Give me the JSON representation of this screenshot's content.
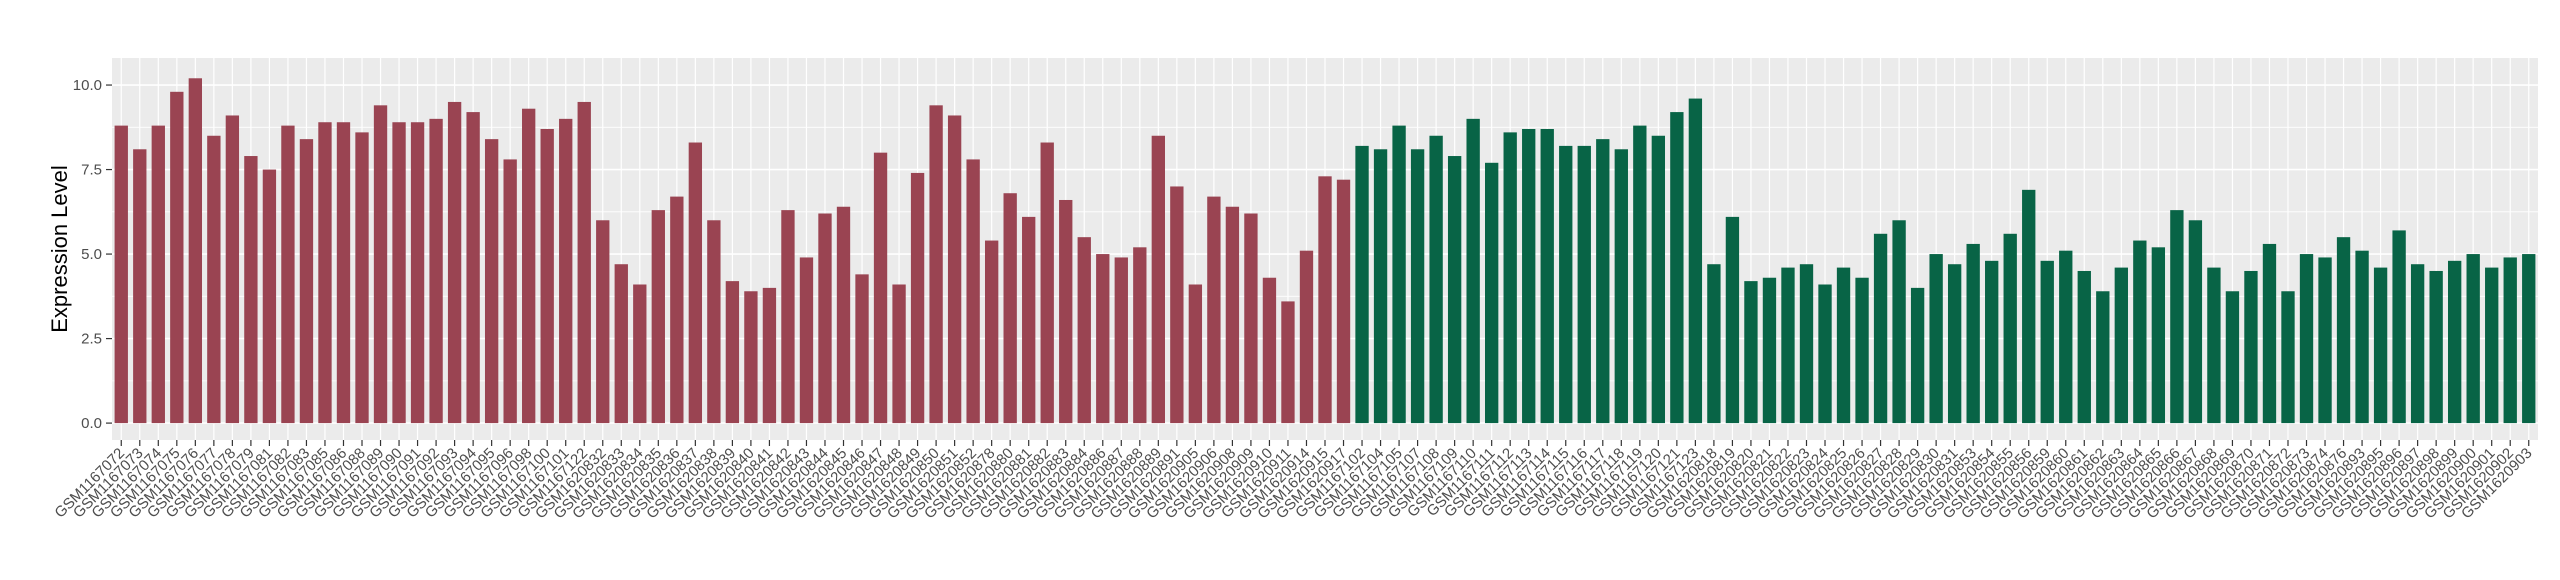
{
  "chart_data": {
    "type": "bar",
    "ylabel": "Expression Level",
    "xlabel": "",
    "ylim": [
      -0.5,
      10.8
    ],
    "yticks": [
      0.0,
      2.5,
      5.0,
      7.5,
      10.0
    ],
    "ytick_labels": [
      "0.0",
      "2.5",
      "5.0",
      "7.5",
      "10.0"
    ],
    "grid": true,
    "legend": "none",
    "colors": {
      "group_a": "#9a4452",
      "group_b": "#086446",
      "panel": "#ebebeb",
      "grid": "#ffffff"
    },
    "categories": [
      "GSM1167072",
      "GSM1167073",
      "GSM1167074",
      "GSM1167075",
      "GSM1167076",
      "GSM1167077",
      "GSM1167078",
      "GSM1167079",
      "GSM1167081",
      "GSM1167082",
      "GSM1167083",
      "GSM1167085",
      "GSM1167086",
      "GSM1167088",
      "GSM1167089",
      "GSM1167090",
      "GSM1167091",
      "GSM1167092",
      "GSM1167093",
      "GSM1167094",
      "GSM1167095",
      "GSM1167096",
      "GSM1167098",
      "GSM1167100",
      "GSM1167101",
      "GSM1167122",
      "GSM1620832",
      "GSM1620833",
      "GSM1620834",
      "GSM1620835",
      "GSM1620836",
      "GSM1620837",
      "GSM1620838",
      "GSM1620839",
      "GSM1620840",
      "GSM1620841",
      "GSM1620842",
      "GSM1620843",
      "GSM1620844",
      "GSM1620845",
      "GSM1620846",
      "GSM1620847",
      "GSM1620848",
      "GSM1620849",
      "GSM1620850",
      "GSM1620851",
      "GSM1620852",
      "GSM1620878",
      "GSM1620880",
      "GSM1620881",
      "GSM1620882",
      "GSM1620883",
      "GSM1620884",
      "GSM1620886",
      "GSM1620887",
      "GSM1620888",
      "GSM1620889",
      "GSM1620891",
      "GSM1620905",
      "GSM1620906",
      "GSM1620908",
      "GSM1620909",
      "GSM1620910",
      "GSM1620911",
      "GSM1620914",
      "GSM1620915",
      "GSM1620917",
      "GSM1167102",
      "GSM1167104",
      "GSM1167105",
      "GSM1167107",
      "GSM1167108",
      "GSM1167109",
      "GSM1167110",
      "GSM1167111",
      "GSM1167112",
      "GSM1167113",
      "GSM1167114",
      "GSM1167115",
      "GSM1167116",
      "GSM1167117",
      "GSM1167118",
      "GSM1167119",
      "GSM1167120",
      "GSM1167121",
      "GSM1167123",
      "GSM1620818",
      "GSM1620819",
      "GSM1620820",
      "GSM1620821",
      "GSM1620822",
      "GSM1620823",
      "GSM1620824",
      "GSM1620825",
      "GSM1620826",
      "GSM1620827",
      "GSM1620828",
      "GSM1620829",
      "GSM1620830",
      "GSM1620831",
      "GSM1620853",
      "GSM1620854",
      "GSM1620855",
      "GSM1620856",
      "GSM1620859",
      "GSM1620860",
      "GSM1620861",
      "GSM1620862",
      "GSM1620863",
      "GSM1620864",
      "GSM1620865",
      "GSM1620866",
      "GSM1620867",
      "GSM1620868",
      "GSM1620869",
      "GSM1620870",
      "GSM1620871",
      "GSM1620872",
      "GSM1620873",
      "GSM1620874",
      "GSM1620876",
      "GSM1620893",
      "GSM1620895",
      "GSM1620896",
      "GSM1620897",
      "GSM1620898",
      "GSM1620899",
      "GSM1620900",
      "GSM1620901",
      "GSM1620902",
      "GSM1620903"
    ],
    "values": [
      8.8,
      8.1,
      8.8,
      9.8,
      10.2,
      8.5,
      9.1,
      7.9,
      7.5,
      8.8,
      8.4,
      8.9,
      8.9,
      8.6,
      9.4,
      8.9,
      8.9,
      9.0,
      9.5,
      9.2,
      8.4,
      7.8,
      9.3,
      8.7,
      9.0,
      9.5,
      6.0,
      4.7,
      4.1,
      6.3,
      6.7,
      8.3,
      6.0,
      4.2,
      3.9,
      4.0,
      6.3,
      4.9,
      6.2,
      6.4,
      4.4,
      8.0,
      4.1,
      7.4,
      9.4,
      9.1,
      7.8,
      5.4,
      6.8,
      6.1,
      8.3,
      6.6,
      5.5,
      5.0,
      4.9,
      5.2,
      8.5,
      7.0,
      4.1,
      6.7,
      6.4,
      6.2,
      4.3,
      3.6,
      5.1,
      7.3,
      7.2,
      8.2,
      8.1,
      8.8,
      8.1,
      8.5,
      7.9,
      9.0,
      7.7,
      8.6,
      8.7,
      8.7,
      8.2,
      8.2,
      8.4,
      8.1,
      8.8,
      8.5,
      9.2,
      9.6,
      4.7,
      6.1,
      4.2,
      4.3,
      4.6,
      4.7,
      4.1,
      4.6,
      4.3,
      5.6,
      6.0,
      4.0,
      5.0,
      4.7,
      5.3,
      4.8,
      5.6,
      6.9,
      4.8,
      5.1,
      4.5,
      3.9,
      4.6,
      5.4,
      5.2,
      6.3,
      6.0,
      4.6,
      3.9,
      4.5,
      5.3,
      3.9,
      5.0,
      4.9,
      5.5,
      5.1,
      4.6,
      5.7,
      4.7,
      4.5,
      4.8,
      5.0,
      4.6,
      4.9,
      5.0
    ],
    "groups_split_index": 67
  }
}
